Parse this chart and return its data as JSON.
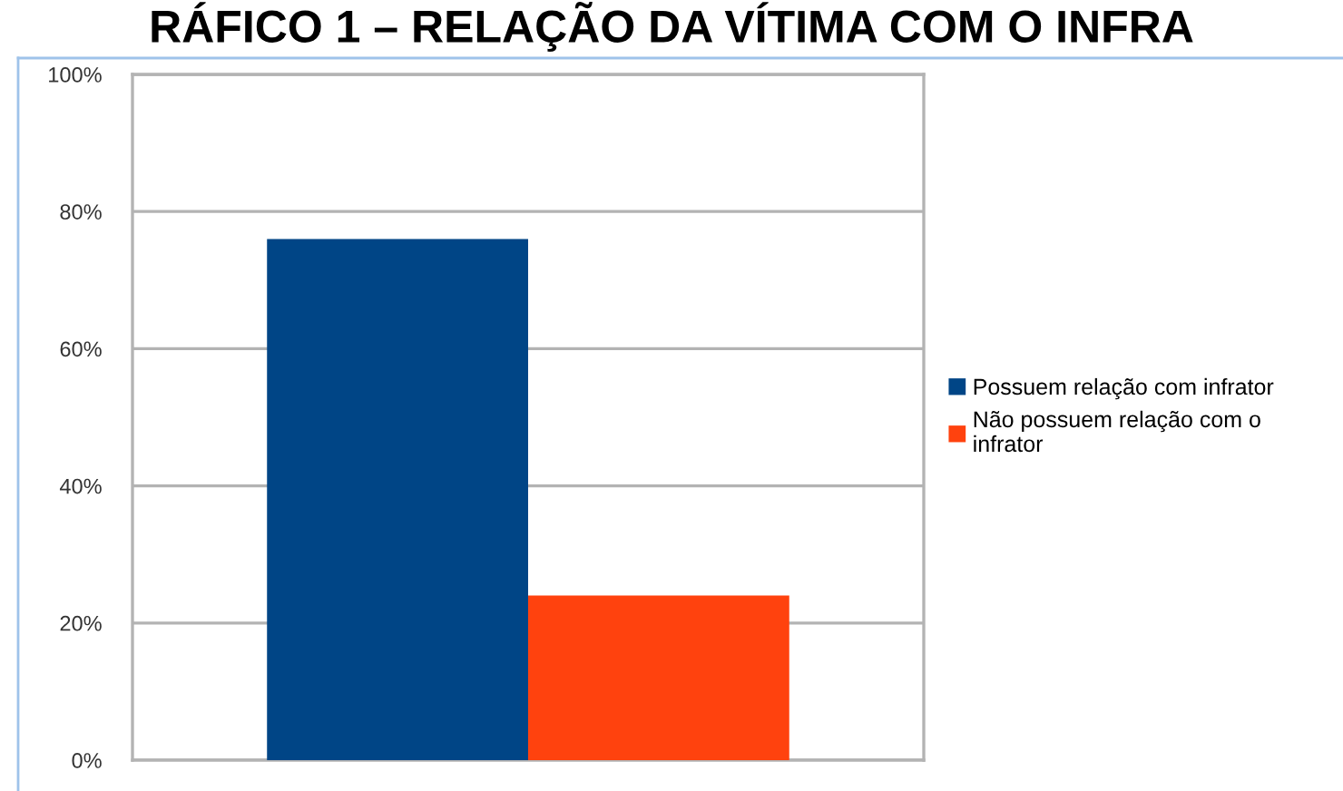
{
  "chart_data": {
    "type": "bar",
    "title": "RÁFICO 1 – RELAÇÃO DA VÍTIMA COM O INFRA",
    "categories": [
      null
    ],
    "series": [
      {
        "name": "Possuem relação com infrator",
        "color": "#004586",
        "values": [
          76
        ]
      },
      {
        "name": "Não possuem relação com o infrator",
        "color": "#ff420e",
        "values": [
          24
        ]
      }
    ],
    "ylim": [
      0,
      100
    ],
    "yticks": [
      {
        "value": 0,
        "label": "0%"
      },
      {
        "value": 20,
        "label": "20%"
      },
      {
        "value": 40,
        "label": "40%"
      },
      {
        "value": 60,
        "label": "60%"
      },
      {
        "value": 80,
        "label": "80%"
      },
      {
        "value": 100,
        "label": "100%"
      }
    ],
    "grid": "y",
    "legend": "right",
    "tick_labels": "y"
  }
}
